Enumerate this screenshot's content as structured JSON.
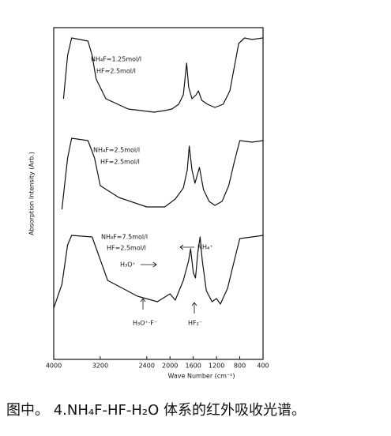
{
  "chart_data": {
    "type": "line",
    "x_label": "Wave Number (cm⁻¹)",
    "y_label": "Absorption Intensity (Arb.)",
    "xlim": [
      4000,
      400
    ],
    "xticks": [
      4000,
      3200,
      2400,
      2000,
      1600,
      1200,
      800,
      400
    ],
    "ylim": [
      0,
      42
    ],
    "grid": false,
    "series": [
      {
        "color": "#111111",
        "x": [
          3832,
          3761,
          3691,
          3551,
          3410,
          3340,
          3270,
          3104,
          2720,
          2273,
          2091,
          1966,
          1851,
          1771,
          1714,
          1680,
          1623,
          1551,
          1512,
          1454,
          1356,
          1229,
          1086,
          971,
          895,
          819,
          716,
          589,
          400
        ],
        "values": [
          33.0,
          38.5,
          40.7,
          40.5,
          40.3,
          38.5,
          35.5,
          33.0,
          31.7,
          31.3,
          31.5,
          31.7,
          32.3,
          33.5,
          37.5,
          34.5,
          33.0,
          33.5,
          34.0,
          32.8,
          32.3,
          31.9,
          32.3,
          34.0,
          37.0,
          40.0,
          40.7,
          40.5,
          40.7
        ]
      },
      {
        "color": "#111111",
        "x": [
          3859,
          3761,
          3691,
          3410,
          3298,
          3200,
          2880,
          2400,
          2091,
          1909,
          1771,
          1703,
          1669,
          1623,
          1571,
          1493,
          1424,
          1327,
          1229,
          1105,
          990,
          895,
          800,
          589,
          400
        ],
        "values": [
          19.0,
          25.5,
          28.0,
          27.7,
          25.5,
          22.0,
          20.5,
          19.3,
          19.3,
          20.3,
          21.7,
          24.0,
          27.0,
          24.0,
          22.3,
          24.3,
          21.5,
          20.0,
          19.5,
          20.0,
          22.0,
          25.0,
          27.7,
          27.5,
          27.7
        ]
      },
      {
        "color": "#111111",
        "x": [
          4000,
          3859,
          3761,
          3691,
          3340,
          3242,
          3072,
          2560,
          2218,
          2000,
          1909,
          1771,
          1680,
          1646,
          1600,
          1561,
          1522,
          1483,
          1444,
          1376,
          1278,
          1200,
          1133,
          1010,
          895,
          800,
          589,
          400
        ],
        "values": [
          6.5,
          9.5,
          14.5,
          15.7,
          15.5,
          13.5,
          10.0,
          8.0,
          7.3,
          8.3,
          7.5,
          10.0,
          12.5,
          14.0,
          11.0,
          10.3,
          13.5,
          15.5,
          12.5,
          8.7,
          7.3,
          7.7,
          7.0,
          9.0,
          12.5,
          15.3,
          15.5,
          15.7
        ]
      }
    ],
    "annotations": [
      "NH₄F=1.25mol/l",
      "HF=2.5mol/l",
      "NH₄F=2.5mol/l",
      "HF=2.5mol/l",
      "NH₄F=7.5mol/l",
      "HF=2.5mol/l",
      "H₃O⁺",
      "NH₄⁺",
      "H₃O⁺·F⁻",
      "HF₂⁻"
    ],
    "caption": "图中。 4.NH₄F-HF-H₂O 体系的红外吸收光谱。"
  }
}
